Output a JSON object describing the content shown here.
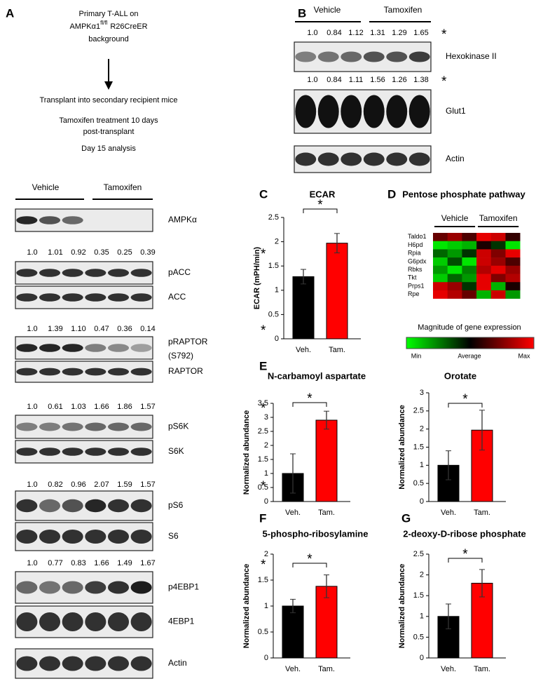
{
  "panel_a": {
    "letter": "A",
    "flow": {
      "line1": "Primary T-ALL on",
      "gene": "AMPKα1",
      "superscript": "fl/fl",
      "rest": "R26CreER",
      "line3": "background",
      "step2": "Transplant into secondary recipient mice",
      "step3a": "Tamoxifen  treatment  10 days",
      "step3b": "post-transplant",
      "step4": "Day 15 analysis"
    },
    "groups": [
      "Vehicle",
      "Tamoxifen"
    ],
    "rows": [
      {
        "label": "AMPKα"
      },
      {
        "quant": [
          "1.0",
          "1.01",
          "0.92",
          "0.35",
          "0.25",
          "0.39"
        ],
        "mark": "*"
      },
      {
        "label": "pACC"
      },
      {
        "label": "ACC"
      },
      {
        "quant": [
          "1.0",
          "1.39",
          "1.10",
          "0.47",
          "0.36",
          "0.14"
        ],
        "mark": "*"
      },
      {
        "label": "pRAPTOR",
        "label2": "(S792)"
      },
      {
        "label": "RAPTOR"
      },
      {
        "quant": [
          "1.0",
          "0.61",
          "1.03",
          "1.66",
          "1.86",
          "1.57"
        ],
        "mark": "*"
      },
      {
        "label": "pS6K"
      },
      {
        "label": "S6K"
      },
      {
        "quant": [
          "1.0",
          "0.82",
          "0.96",
          "2.07",
          "1.59",
          "1.57"
        ],
        "mark": "*"
      },
      {
        "label": "pS6"
      },
      {
        "label": "S6"
      },
      {
        "quant": [
          "1.0",
          "0.77",
          "0.83",
          "1.66",
          "1.49",
          "1.67"
        ],
        "mark": "*"
      },
      {
        "label": "p4EBP1"
      },
      {
        "label": "4EBP1"
      },
      {
        "label": "Actin"
      }
    ]
  },
  "panel_b": {
    "letter": "B",
    "groups": [
      "Vehicle",
      "Tamoxifen"
    ],
    "rows": [
      {
        "quant": [
          "1.0",
          "0.84",
          "1.12",
          "1.31",
          "1.29",
          "1.65"
        ],
        "mark": "*"
      },
      {
        "label": "Hexokinase II"
      },
      {
        "quant": [
          "1.0",
          "0.84",
          "1.11",
          "1.56",
          "1.26",
          "1.38"
        ],
        "mark": "*"
      },
      {
        "label": "Glut1"
      },
      {
        "label": "Actin"
      }
    ]
  },
  "chart_data": [
    {
      "panel": "C",
      "type": "bar",
      "title": "ECAR",
      "y_label": "ECAR (mPH/min)",
      "categories": [
        "Veh.",
        "Tam."
      ],
      "values": [
        1.28,
        1.97
      ],
      "errors": [
        0.15,
        0.2
      ],
      "colors": [
        "#000000",
        "#ff0000"
      ],
      "ylim": [
        0,
        2.5
      ],
      "yticks": [
        0,
        0.5,
        1,
        1.5,
        2,
        2.5
      ],
      "significance": "*"
    },
    {
      "panel": "D",
      "type": "heatmap",
      "title": "Pentose phosphate pathway",
      "groups": [
        "Vehicle",
        "Tamoxifen"
      ],
      "rows": [
        "Taldo1",
        "H6pd",
        "Rpia",
        "G6pdx",
        "Rbks",
        "Tkt",
        "Prps1",
        "Rpe"
      ],
      "values": [
        [
          0.4,
          0.6,
          0.3,
          0.9,
          0.8,
          0.2
        ],
        [
          -0.9,
          -0.8,
          -0.7,
          0.1,
          -0.2,
          -0.9
        ],
        [
          -0.4,
          -0.6,
          -0.2,
          0.8,
          0.5,
          0.9
        ],
        [
          -0.8,
          -0.3,
          -0.9,
          0.8,
          0.6,
          0.3
        ],
        [
          -0.6,
          -0.9,
          -0.5,
          0.7,
          0.9,
          0.6
        ],
        [
          -0.8,
          -0.4,
          -0.6,
          0.9,
          0.5,
          0.7
        ],
        [
          0.8,
          0.6,
          -0.2,
          0.9,
          -0.7,
          0.1
        ],
        [
          0.9,
          0.7,
          0.4,
          -0.7,
          0.8,
          -0.6
        ]
      ],
      "zlim": [
        -1,
        1
      ],
      "colors": [
        "#00ff00",
        "#000000",
        "#ff0000"
      ],
      "colorbar_title": "Magnitude of gene expression",
      "colorbar_labels": [
        "Min",
        "Average",
        "Max"
      ]
    },
    {
      "panel": "E",
      "type": "bar",
      "title": "N-carbamoyl aspartate",
      "y_label": "Normalized abundance",
      "categories": [
        "Veh.",
        "Tam."
      ],
      "values": [
        1.0,
        2.9
      ],
      "errors": [
        0.7,
        0.32
      ],
      "colors": [
        "#000000",
        "#ff0000"
      ],
      "ylim": [
        0,
        3.5
      ],
      "yticks": [
        0,
        0.5,
        1,
        1.5,
        2,
        2.5,
        3,
        3.5
      ],
      "significance": "*"
    },
    {
      "type": "bar",
      "title": "Orotate",
      "y_label": "Normalized abundance",
      "categories": [
        "Veh.",
        "Tam."
      ],
      "values": [
        1.0,
        1.97
      ],
      "errors": [
        0.4,
        0.55
      ],
      "colors": [
        "#000000",
        "#ff0000"
      ],
      "ylim": [
        0,
        3
      ],
      "yticks": [
        0,
        0.5,
        1,
        1.5,
        2,
        2.5,
        3
      ],
      "significance": "*"
    },
    {
      "panel": "F",
      "type": "bar",
      "title": "5-phospho-ribosylamine",
      "y_label": "Normalized abundance",
      "categories": [
        "Veh.",
        "Tam."
      ],
      "values": [
        1.0,
        1.38
      ],
      "errors": [
        0.13,
        0.22
      ],
      "colors": [
        "#000000",
        "#ff0000"
      ],
      "ylim": [
        0,
        2
      ],
      "yticks": [
        0,
        0.5,
        1,
        1.5,
        2
      ],
      "significance": "*"
    },
    {
      "panel": "G",
      "type": "bar",
      "title": "2-deoxy-D-ribose phosphate",
      "y_label": "Normalized abundance",
      "categories": [
        "Veh.",
        "Tam."
      ],
      "values": [
        1.0,
        1.8
      ],
      "errors": [
        0.3,
        0.33
      ],
      "colors": [
        "#000000",
        "#ff0000"
      ],
      "ylim": [
        0,
        2.5
      ],
      "yticks": [
        0,
        0.5,
        1,
        1.5,
        2,
        2.5
      ],
      "significance": "*"
    }
  ]
}
